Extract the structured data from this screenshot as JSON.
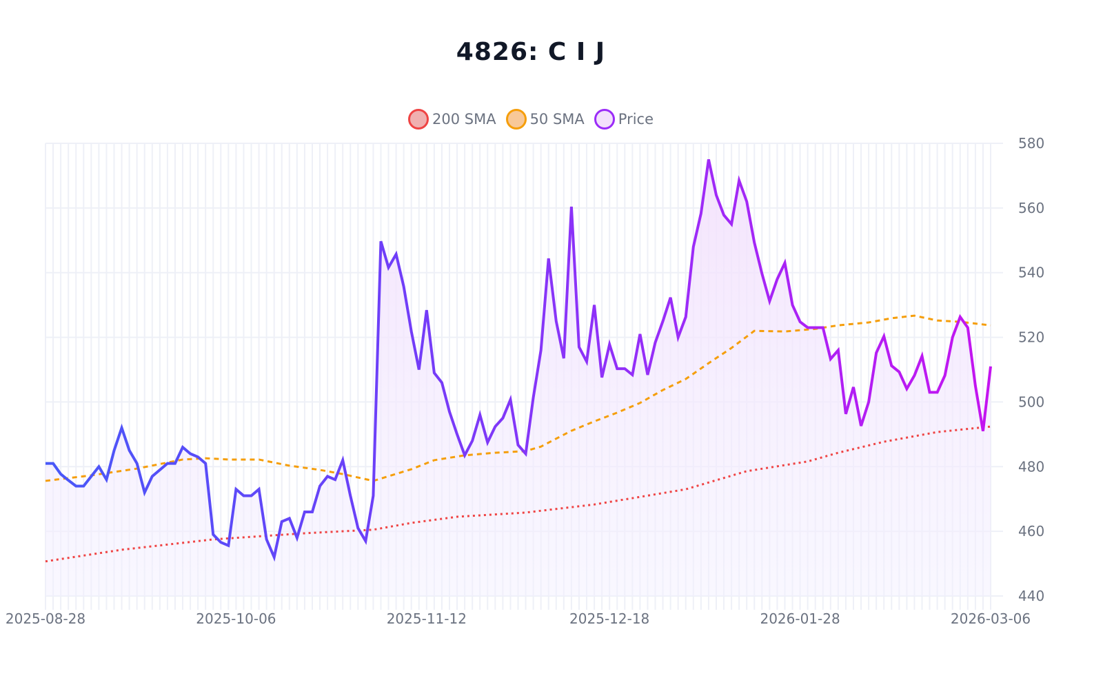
{
  "chart_data": {
    "type": "line",
    "title": "4826: C I J",
    "ylim": [
      440,
      580
    ],
    "yticks": [
      440,
      460,
      480,
      500,
      520,
      540,
      560,
      580
    ],
    "y_axis_side": "right",
    "grid": true,
    "legend": "top-center",
    "x_tick_labels": [
      {
        "index": 0,
        "label": "2025-08-28"
      },
      {
        "index": 25,
        "label": "2025-10-06"
      },
      {
        "index": 50,
        "label": "2025-11-12"
      },
      {
        "index": 74,
        "label": "2025-12-18"
      },
      {
        "index": 99,
        "label": "2026-01-28"
      },
      {
        "index": 124,
        "label": "2026-03-06"
      }
    ],
    "series": [
      {
        "name": "200 SMA",
        "color": "#ef4444",
        "fill": "#f0b0b0",
        "style": "dotted",
        "points": [
          [
            0,
            450.7
          ],
          [
            10,
            454.3
          ],
          [
            22,
            457.5
          ],
          [
            34,
            459.4
          ],
          [
            43,
            460.5
          ],
          [
            48,
            462.6
          ],
          [
            54,
            464.5
          ],
          [
            63,
            465.8
          ],
          [
            72,
            468.3
          ],
          [
            84,
            473
          ],
          [
            92,
            478.6
          ],
          [
            100,
            481.6
          ],
          [
            104,
            484.3
          ],
          [
            110,
            487.7
          ],
          [
            117,
            490.7
          ],
          [
            124,
            492.4
          ]
        ]
      },
      {
        "name": "50 SMA",
        "color": "#f59e0b",
        "fill": "#f8c898",
        "style": "dashed",
        "points": [
          [
            0,
            475.6
          ],
          [
            6,
            477.3
          ],
          [
            12,
            479.4
          ],
          [
            18,
            482.2
          ],
          [
            21,
            482.6
          ],
          [
            24,
            482.2
          ],
          [
            28,
            482.2
          ],
          [
            32,
            480.3
          ],
          [
            36,
            479
          ],
          [
            39,
            477.7
          ],
          [
            43,
            475.6
          ],
          [
            48,
            479.2
          ],
          [
            51,
            482
          ],
          [
            55,
            483.5
          ],
          [
            59,
            484.3
          ],
          [
            63,
            484.8
          ],
          [
            65,
            486.2
          ],
          [
            69,
            491.1
          ],
          [
            72,
            494
          ],
          [
            75,
            496.7
          ],
          [
            78,
            499.7
          ],
          [
            81,
            503.7
          ],
          [
            84,
            507.1
          ],
          [
            87,
            512
          ],
          [
            90,
            516.7
          ],
          [
            93,
            522
          ],
          [
            97,
            521.8
          ],
          [
            101,
            522.6
          ],
          [
            104,
            523.7
          ],
          [
            108,
            524.6
          ],
          [
            111,
            525.9
          ],
          [
            114,
            526.7
          ],
          [
            117,
            525.2
          ],
          [
            120,
            524.8
          ],
          [
            124,
            523.7
          ]
        ]
      },
      {
        "name": "Price",
        "color": "#9b2cf8",
        "fill": "#f3e0fc",
        "style": "solid",
        "gradient": [
          "#4858f8",
          "#6a40f8",
          "#9a2cf8",
          "#c414f0"
        ],
        "values": [
          481,
          481,
          477.7,
          475.8,
          474,
          474,
          477,
          480,
          476,
          485,
          492,
          485,
          481,
          472,
          477,
          479,
          481,
          481,
          486,
          484,
          483,
          481,
          459,
          456.6,
          455.6,
          473,
          471,
          471,
          473,
          457.5,
          452,
          463,
          464,
          458,
          466,
          466,
          474,
          477,
          476,
          482,
          471,
          461,
          457,
          471,
          549.7,
          541.6,
          545.7,
          535.7,
          521.8,
          510,
          528.4,
          509,
          506,
          497,
          490,
          483.5,
          488,
          496,
          487.5,
          492.4,
          495,
          500.7,
          486.7,
          484,
          501.4,
          516,
          544.4,
          525,
          513.5,
          560.4,
          517,
          512.5,
          530,
          507.6,
          517.8,
          510.3,
          510.3,
          508.4,
          521,
          508.4,
          518.4,
          525,
          532.3,
          520,
          526.3,
          548,
          558.3,
          575,
          564,
          557.8,
          555,
          568.5,
          562,
          549.3,
          539.7,
          531.2,
          538,
          543,
          530,
          524.8,
          523,
          523,
          523,
          513.3,
          516,
          496.3,
          504.6,
          492.6,
          500,
          515.2,
          520.3,
          511.2,
          509.3,
          504.1,
          508.2,
          514.2,
          503,
          503,
          508.2,
          520,
          526.3,
          523,
          505,
          491,
          511
        ]
      }
    ]
  }
}
